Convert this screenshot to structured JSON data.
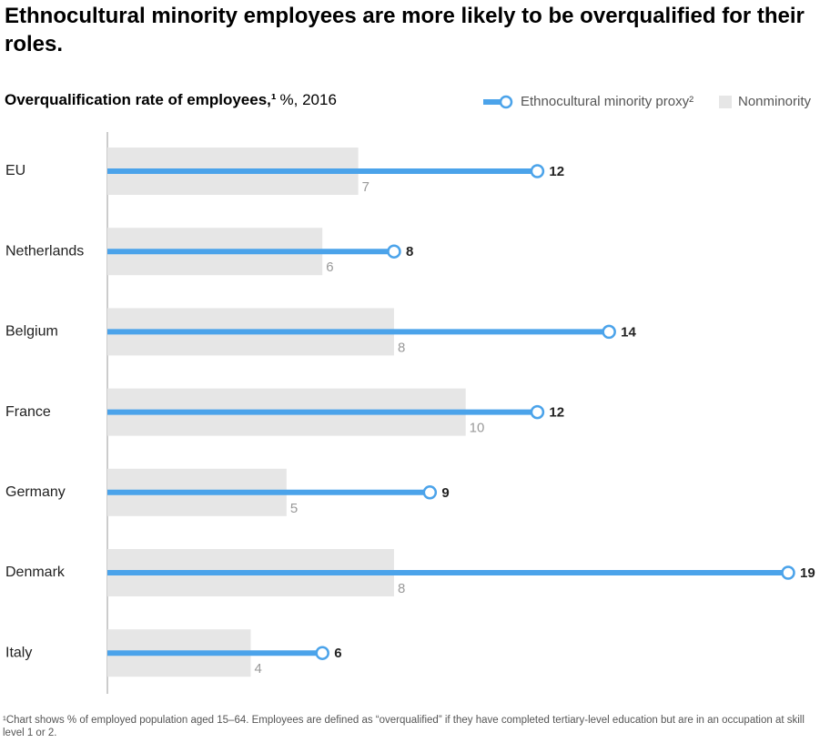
{
  "chart_data": {
    "type": "dumbbell-bar",
    "title": "Ethnocultural minority employees are more likely to be overqualified for their roles.",
    "subtitle_bold": "Overqualification rate of employees,¹",
    "subtitle_rest": "%, 2016",
    "categories": [
      "EU",
      "Netherlands",
      "Belgium",
      "France",
      "Germany",
      "Denmark",
      "Italy"
    ],
    "series": [
      {
        "name": "Ethnocultural minority proxy²",
        "color": "#4ba3ea",
        "values": [
          12,
          8,
          14,
          12,
          9,
          19,
          6
        ]
      },
      {
        "name": "Nonminority",
        "color": "#e6e6e6",
        "values": [
          7,
          6,
          8,
          10,
          5,
          8,
          4
        ]
      }
    ],
    "xlim": [
      0,
      19
    ],
    "footnote": "¹Chart shows % of employed population aged 15–64. Employees are defined as “overqualified” if they have completed tertiary-level education but are in an occupation at skill level 1 or 2."
  }
}
